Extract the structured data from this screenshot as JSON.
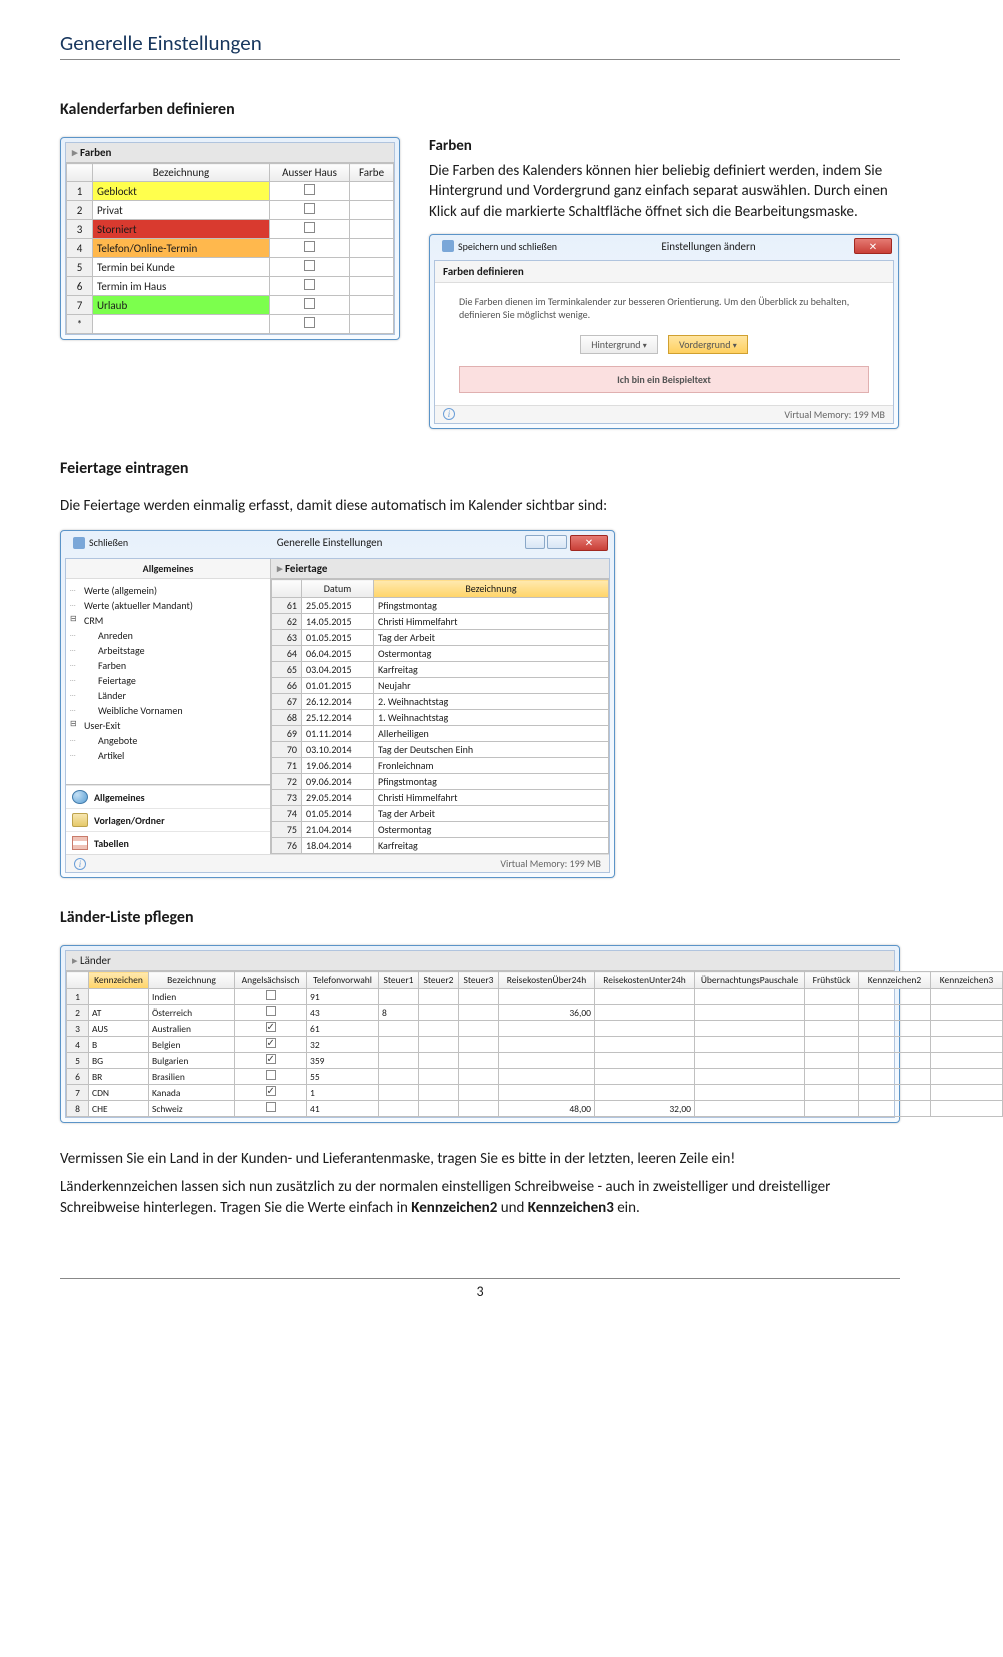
{
  "page_title": "Generelle Einstellungen",
  "page_number": "3",
  "section_kalender": "Kalenderfarben definieren",
  "farben_heading": "Farben",
  "farben_para1": "Die Farben des Kalenders können hier beliebig definiert werden, indem Sie Hintergrund und Vordergrund ganz einfach separat auswählen. Durch einen Klick auf die markierte Schaltfläche öffnet sich die Bearbeitungsmaske.",
  "farben_table": {
    "title": "Farben",
    "columns": [
      "",
      "Bezeichnung",
      "Ausser Haus",
      "Farbe"
    ],
    "rows": [
      {
        "n": "1",
        "bez": "Geblockt",
        "bg": "#ffff4d"
      },
      {
        "n": "2",
        "bez": "Privat",
        "bg": "#ffffff"
      },
      {
        "n": "3",
        "bez": "Storniert",
        "bg": "#d93a2f"
      },
      {
        "n": "4",
        "bez": "Telefon/Online-Termin",
        "bg": "#ffb84d"
      },
      {
        "n": "5",
        "bez": "Termin bei Kunde",
        "bg": "#ffffff"
      },
      {
        "n": "6",
        "bez": "Termin im Haus",
        "bg": "#ffffff"
      },
      {
        "n": "7",
        "bez": "Urlaub",
        "bg": "#7cff4d"
      }
    ],
    "star_row": "*"
  },
  "settings_win": {
    "ribbon_save": "Speichern und schließen",
    "title_center": "Einstellungen ändern",
    "panel_title": "Farben definieren",
    "panel_desc": "Die Farben dienen im Terminkalender zur besseren Orientierung. Um den Überblick zu behalten, definieren Sie möglichst wenige.",
    "btn_bg": "Hintergrund",
    "btn_fg": "Vordergrund",
    "example_text": "Ich bin ein Beispieltext",
    "status_mem": "Virtual Memory: 199 MB"
  },
  "section_feiertage": "Feiertage eintragen",
  "feiertage_para": "Die Feiertage werden einmalig erfasst, damit diese automatisch im Kalender sichtbar sind:",
  "feiertage_win": {
    "ribbon_close": "Schließen",
    "title_center": "Generelle Einstellungen",
    "left_tab": "Allgemeines",
    "tree": [
      {
        "label": "Werte (allgemein)",
        "cls": "node"
      },
      {
        "label": "Werte (aktueller Mandant)",
        "cls": "node"
      },
      {
        "label": "CRM",
        "cls": "node group"
      },
      {
        "label": "Anreden",
        "cls": "node",
        "indent": 1
      },
      {
        "label": "Arbeitstage",
        "cls": "node",
        "indent": 1
      },
      {
        "label": "Farben",
        "cls": "node",
        "indent": 1
      },
      {
        "label": "Feiertage",
        "cls": "node",
        "indent": 1
      },
      {
        "label": "Länder",
        "cls": "node",
        "indent": 1
      },
      {
        "label": "Weibliche Vornamen",
        "cls": "node",
        "indent": 1
      },
      {
        "label": "User-Exit",
        "cls": "node group"
      },
      {
        "label": "Angebote",
        "cls": "node",
        "indent": 1
      },
      {
        "label": "Artikel",
        "cls": "node",
        "indent": 1
      }
    ],
    "nav": [
      {
        "label": "Allgemeines",
        "ico": "ico-globe"
      },
      {
        "label": "Vorlagen/Ordner",
        "ico": "ico-folder"
      },
      {
        "label": "Tabellen",
        "ico": "ico-table"
      }
    ],
    "right_title": "Feiertage",
    "columns": [
      "",
      "Datum",
      "Bezeichnung"
    ],
    "rows": [
      {
        "n": "61",
        "d": "25.05.2015",
        "b": "Pfingstmontag"
      },
      {
        "n": "62",
        "d": "14.05.2015",
        "b": "Christi Himmelfahrt"
      },
      {
        "n": "63",
        "d": "01.05.2015",
        "b": "Tag der Arbeit"
      },
      {
        "n": "64",
        "d": "06.04.2015",
        "b": "Ostermontag"
      },
      {
        "n": "65",
        "d": "03.04.2015",
        "b": "Karfreitag"
      },
      {
        "n": "66",
        "d": "01.01.2015",
        "b": "Neujahr"
      },
      {
        "n": "67",
        "d": "26.12.2014",
        "b": "2. Weihnachtstag"
      },
      {
        "n": "68",
        "d": "25.12.2014",
        "b": "1. Weihnachtstag"
      },
      {
        "n": "69",
        "d": "01.11.2014",
        "b": "Allerheiligen"
      },
      {
        "n": "70",
        "d": "03.10.2014",
        "b": "Tag der Deutschen Einh"
      },
      {
        "n": "71",
        "d": "19.06.2014",
        "b": "Fronleichnam"
      },
      {
        "n": "72",
        "d": "09.06.2014",
        "b": "Pfingstmontag"
      },
      {
        "n": "73",
        "d": "29.05.2014",
        "b": "Christi Himmelfahrt"
      },
      {
        "n": "74",
        "d": "01.05.2014",
        "b": "Tag der Arbeit"
      },
      {
        "n": "75",
        "d": "21.04.2014",
        "b": "Ostermontag"
      },
      {
        "n": "76",
        "d": "18.04.2014",
        "b": "Karfreitag"
      }
    ],
    "status_mem": "Virtual Memory: 199 MB"
  },
  "section_laender": "Länder-Liste pflegen",
  "laender_win": {
    "title": "Länder",
    "columns": [
      "",
      "Kennzeichen",
      "Bezeichnung",
      "Angelsächsisch",
      "Telefonvorwahl",
      "Steuer1",
      "Steuer2",
      "Steuer3",
      "ReisekostenÜber24h",
      "ReisekostenUnter24h",
      "ÜbernachtungsPauschale",
      "Frühstück",
      "Kennzeichen2",
      "Kennzeichen3"
    ],
    "col_widths": [
      "22px",
      "60px",
      "86px",
      "72px",
      "72px",
      "40px",
      "40px",
      "40px",
      "96px",
      "100px",
      "110px",
      "54px",
      "72px",
      "72px"
    ],
    "rows": [
      {
        "n": "1",
        "kz": "",
        "bez": "Indien",
        "ang": false,
        "tel": "91",
        "s1": "",
        "s2": "",
        "s3": "",
        "r24": "",
        "ru24": "",
        "uep": "",
        "fr": "",
        "kz2": "",
        "kz3": ""
      },
      {
        "n": "2",
        "kz": "AT",
        "bez": "Österreich",
        "ang": false,
        "tel": "43",
        "s1": "8",
        "s2": "",
        "s3": "",
        "r24": "36,00",
        "ru24": "",
        "uep": "",
        "fr": "",
        "kz2": "",
        "kz3": ""
      },
      {
        "n": "3",
        "kz": "AUS",
        "bez": "Australien",
        "ang": true,
        "tel": "61",
        "s1": "",
        "s2": "",
        "s3": "",
        "r24": "",
        "ru24": "",
        "uep": "",
        "fr": "",
        "kz2": "",
        "kz3": ""
      },
      {
        "n": "4",
        "kz": "B",
        "bez": "Belgien",
        "ang": true,
        "tel": "32",
        "s1": "",
        "s2": "",
        "s3": "",
        "r24": "",
        "ru24": "",
        "uep": "",
        "fr": "",
        "kz2": "",
        "kz3": ""
      },
      {
        "n": "5",
        "kz": "BG",
        "bez": "Bulgarien",
        "ang": true,
        "tel": "359",
        "s1": "",
        "s2": "",
        "s3": "",
        "r24": "",
        "ru24": "",
        "uep": "",
        "fr": "",
        "kz2": "",
        "kz3": ""
      },
      {
        "n": "6",
        "kz": "BR",
        "bez": "Brasilien",
        "ang": false,
        "tel": "55",
        "s1": "",
        "s2": "",
        "s3": "",
        "r24": "",
        "ru24": "",
        "uep": "",
        "fr": "",
        "kz2": "",
        "kz3": ""
      },
      {
        "n": "7",
        "kz": "CDN",
        "bez": "Kanada",
        "ang": true,
        "tel": "1",
        "s1": "",
        "s2": "",
        "s3": "",
        "r24": "",
        "ru24": "",
        "uep": "",
        "fr": "",
        "kz2": "",
        "kz3": ""
      },
      {
        "n": "8",
        "kz": "CHE",
        "bez": "Schweiz",
        "ang": false,
        "tel": "41",
        "s1": "",
        "s2": "",
        "s3": "",
        "r24": "48,00",
        "ru24": "32,00",
        "uep": "",
        "fr": "",
        "kz2": "",
        "kz3": ""
      }
    ]
  },
  "laender_para1": "Vermissen Sie ein Land in der Kunden- und Lieferantenmaske, tragen Sie es bitte in der letzten, leeren Zeile ein!",
  "laender_para2_a": "Länderkennzeichen lassen sich nun zusätzlich zu der normalen einstelligen Schreibweise - auch in zweistelliger und dreistelliger Schreibweise hinterlegen. Tragen Sie die Werte einfach in ",
  "laender_para2_b1": "Kennzeichen2",
  "laender_para2_mid": " und ",
  "laender_para2_b2": "Kennzeichen3",
  "laender_para2_end": " ein."
}
